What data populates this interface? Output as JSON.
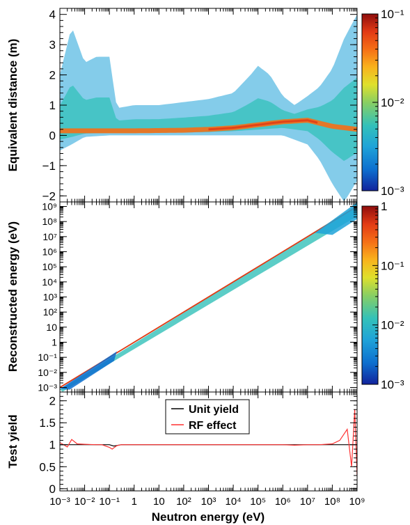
{
  "chart_data": [
    {
      "type": "heatmap",
      "panel": "top",
      "xlabel": "",
      "ylabel": "Equivalent distance  (m)",
      "xscale": "log",
      "xlim": [
        0.001,
        1000000000
      ],
      "ylim": [
        -2.2,
        4.2
      ],
      "yticks": [
        -2,
        -1,
        0,
        1,
        2,
        3,
        4
      ],
      "ytick_labels": [
        "−2",
        "−1",
        "0",
        "1",
        "2",
        "3",
        "4"
      ],
      "colorbar": {
        "scale": "log",
        "range": [
          0.001,
          0.1
        ],
        "tick_labels": [
          "10⁻³",
          "10⁻²",
          "10⁻¹"
        ]
      },
      "ridge": {
        "x": [
          0.001,
          0.01,
          0.1,
          1,
          10,
          100,
          1000,
          10000,
          100000,
          1000000,
          10000000,
          100000000,
          1000000000
        ],
        "y": [
          0.15,
          0.15,
          0.15,
          0.15,
          0.16,
          0.17,
          0.2,
          0.25,
          0.35,
          0.45,
          0.5,
          0.3,
          0.2
        ]
      },
      "envelope_upper": {
        "x": [
          0.001,
          0.003,
          0.01,
          0.03,
          0.1,
          0.2,
          1,
          10,
          100,
          1000,
          10000,
          50000,
          100000,
          300000,
          1000000,
          3000000,
          10000000,
          30000000,
          100000000,
          300000000,
          1000000000
        ],
        "y": [
          2.0,
          3.6,
          2.4,
          2.6,
          2.6,
          0.9,
          1.0,
          1.0,
          1.1,
          1.2,
          1.4,
          2.0,
          2.3,
          2.0,
          1.3,
          1.0,
          1.3,
          1.6,
          2.2,
          3.2,
          4.0
        ]
      },
      "envelope_lower": {
        "x": [
          0.001,
          0.003,
          0.01,
          0.1,
          1,
          1000,
          100000,
          1000000,
          10000000,
          30000000,
          100000000,
          300000000,
          1000000000
        ],
        "y": [
          -0.5,
          -0.3,
          -0.05,
          0.0,
          0.0,
          0.0,
          0.0,
          0.0,
          -0.3,
          -0.8,
          -1.6,
          -2.2,
          -1.5
        ]
      },
      "grid": false,
      "x_tick_labels_shown": false
    },
    {
      "type": "heatmap",
      "panel": "middle",
      "xlabel": "",
      "ylabel": "Reconstructed energy  (eV)",
      "xscale": "log",
      "yscale": "log",
      "xlim": [
        0.001,
        1000000000
      ],
      "ylim": [
        0.0005,
        2000000000
      ],
      "ytick_labels": [
        "10⁻³",
        "10⁻²",
        "10⁻¹",
        "1",
        "10",
        "10²",
        "10³",
        "10⁴",
        "10⁵",
        "10⁶",
        "10⁷",
        "10⁸",
        "10⁹"
      ],
      "diagonal": {
        "x": [
          0.001,
          1000000000
        ],
        "y": [
          0.001,
          1000000000
        ]
      },
      "colorbar": {
        "scale": "log",
        "range": [
          0.001,
          1
        ],
        "tick_labels": [
          "10⁻³",
          "10⁻²",
          "10⁻¹",
          "1"
        ]
      },
      "grid": false,
      "x_tick_labels_shown": false
    },
    {
      "type": "line",
      "panel": "bottom",
      "xlabel": "Neutron energy  (eV)",
      "ylabel": "Test yield",
      "xscale": "log",
      "xlim": [
        0.001,
        1000000000
      ],
      "ylim": [
        -0.05,
        2.2
      ],
      "yticks": [
        0,
        0.5,
        1,
        1.5,
        2
      ],
      "ytick_labels": [
        "0",
        "0.5",
        "1",
        "1.5",
        "2"
      ],
      "xtick_labels": [
        "10⁻³",
        "10⁻²",
        "10⁻¹",
        "1",
        "10",
        "10²",
        "10³",
        "10⁴",
        "10⁵",
        "10⁶",
        "10⁷",
        "10⁸",
        "10⁹"
      ],
      "legend": {
        "placement": "top-center",
        "entries": [
          "Unit yield",
          "RF effect"
        ]
      },
      "series": [
        {
          "name": "Unit yield",
          "color": "#000000",
          "x": [
            0.001,
            0.003,
            0.01,
            0.05,
            0.1,
            0.15,
            0.3,
            1,
            10,
            100,
            1000,
            10000,
            100000,
            1000000,
            10000000,
            100000000,
            1000000000
          ],
          "y": [
            1.0,
            1.0,
            1.0,
            1.0,
            1.0,
            0.97,
            1.0,
            1.0,
            1.0,
            1.0,
            1.0,
            1.0,
            1.0,
            1.0,
            1.0,
            1.0,
            1.0
          ]
        },
        {
          "name": "RF effect",
          "color": "#ff3030",
          "x": [
            0.001,
            0.002,
            0.003,
            0.005,
            0.01,
            0.03,
            0.05,
            0.1,
            0.13,
            0.15,
            0.2,
            0.3,
            1,
            10,
            100,
            1000,
            10000,
            100000,
            1000000,
            3000000,
            10000000,
            30000000,
            100000000,
            200000000,
            400000000,
            600000000,
            800000000,
            1000000000
          ],
          "y": [
            1.05,
            0.95,
            1.12,
            1.02,
            1.01,
            1.0,
            1.0,
            0.94,
            0.9,
            0.93,
            0.98,
            1.0,
            1.0,
            1.0,
            1.0,
            1.0,
            1.0,
            1.0,
            1.0,
            0.99,
            1.0,
            1.0,
            1.02,
            1.1,
            1.35,
            0.5,
            1.8,
            0.3
          ]
        }
      ],
      "grid": false
    }
  ],
  "colors": {
    "palette": [
      "#12239c",
      "#0d6fcf",
      "#1fa3d8",
      "#33c1b9",
      "#89cf62",
      "#dfe02c",
      "#f9b21c",
      "#f56f16",
      "#e23a14",
      "#8f0d0d"
    ],
    "frame": "#000000"
  }
}
